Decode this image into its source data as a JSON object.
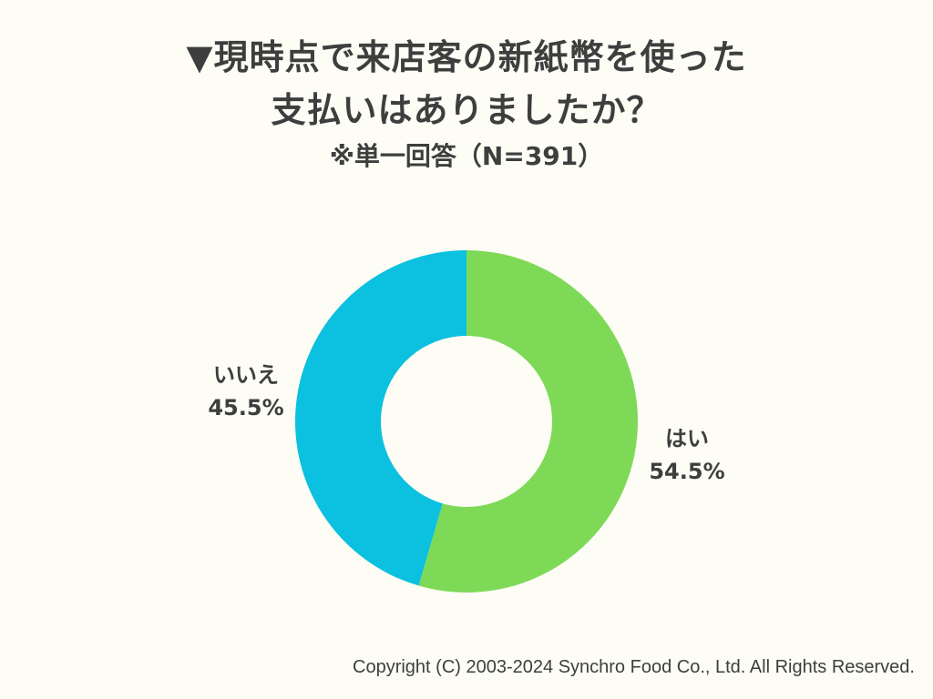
{
  "chart_data": {
    "type": "pie",
    "donut": true,
    "title_lines": [
      "▼現時点で来店客の新紙幣を使った",
      "支払いはありましたか？"
    ],
    "subtitle": "※単一回答（N=391）",
    "n": 391,
    "slices": [
      {
        "label": "はい",
        "value": 54.5,
        "value_label": "54.5%",
        "color": "#7ed957"
      },
      {
        "label": "いいえ",
        "value": 45.5,
        "value_label": "45.5%",
        "color": "#0cc0df"
      }
    ],
    "start_angle": "12 o'clock",
    "direction": "clockwise"
  },
  "colors": {
    "background": "#fdfcf5",
    "text": "#3e3e3e"
  },
  "footer": {
    "copyright": "Copyright (C) 2003-2024  Synchro Food Co., Ltd. All Rights Reserved."
  }
}
